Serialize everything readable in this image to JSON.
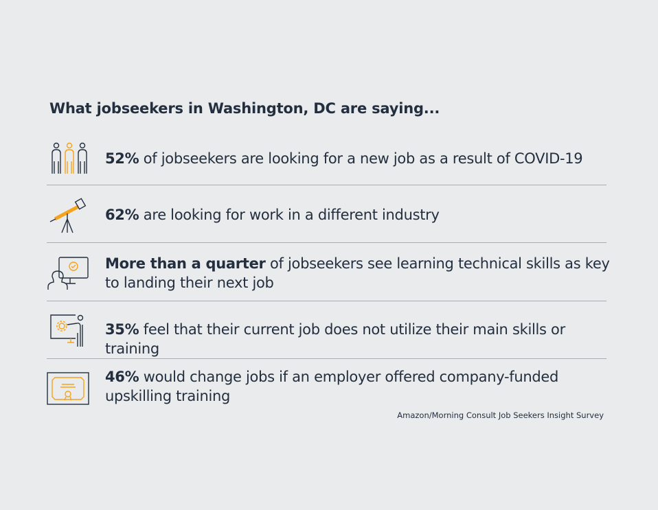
{
  "title": "What jobseekers in Washington, DC are saying...",
  "colors": {
    "background": "#eaebed",
    "text": "#232f3e",
    "accent": "#f5a31b",
    "rule": "#a9adb2"
  },
  "stats": [
    {
      "icon": "people-icon",
      "bold": "52%",
      "rest": " of jobseekers are looking for a new job as a result of COVID-19"
    },
    {
      "icon": "telescope-icon",
      "bold": "62%",
      "rest": " are looking for work in a different industry"
    },
    {
      "icon": "person-computer-icon",
      "bold": "More than a quarter",
      "rest": " of jobseekers see learning technical skills as key to landing their next job"
    },
    {
      "icon": "presenter-gear-icon",
      "bold": "35%",
      "rest": " feel that their current job does not utilize their main skills or training"
    },
    {
      "icon": "certificate-icon",
      "bold": "46%",
      "rest": " would change jobs if an employer offered company-funded upskilling training"
    }
  ],
  "source": "Amazon/Morning Consult Job Seekers Insight Survey"
}
